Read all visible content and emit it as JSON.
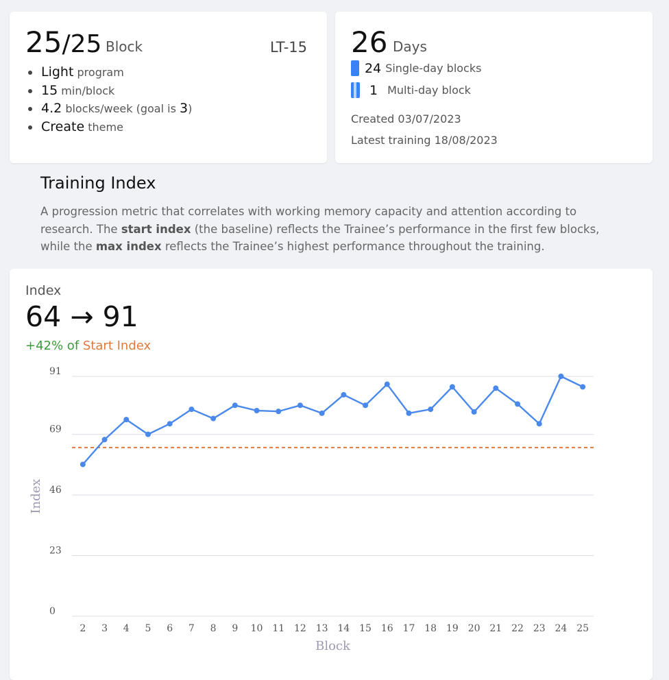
{
  "program": {
    "blocks_done": "25",
    "blocks_total": "25",
    "blocks_unit": "Block",
    "code": "LT-15",
    "stats": [
      {
        "value": "Light",
        "label": "program"
      },
      {
        "value": "15",
        "label": "min/block"
      },
      {
        "value": "4.2",
        "label": "blocks/week (goal is",
        "goal": "3",
        "close": ")"
      },
      {
        "value": "Create",
        "label": "theme"
      }
    ]
  },
  "days": {
    "count": "26",
    "unit": "Days",
    "single_count": "24",
    "single_label": "Single-day blocks",
    "multi_count": "1",
    "multi_label": "Multi-day block",
    "created": "Created 03/07/2023",
    "latest": "Latest training 18/08/2023"
  },
  "section": {
    "title": "Training Index",
    "desc_1": "A progression metric that correlates with working memory capacity and attention according to research. The ",
    "desc_b1": "start index",
    "desc_2": " (the baseline) reflects the Trainee’s performance in the first few blocks, while the ",
    "desc_b2": "max index",
    "desc_3": " reflects the Trainee’s highest performance throughout the training."
  },
  "index": {
    "label": "Index",
    "value": "64 → 91",
    "change_pct": "+42% of",
    "change_ref": "Start Index"
  },
  "colors": {
    "line": "#4a89ea",
    "start_line": "#e07a3c",
    "grid": "#dcdce6"
  },
  "chart_data": {
    "type": "line",
    "xlabel": "Block",
    "ylabel": "Index",
    "x": [
      2,
      3,
      4,
      5,
      6,
      7,
      8,
      9,
      10,
      11,
      12,
      13,
      14,
      15,
      16,
      17,
      18,
      19,
      20,
      21,
      22,
      23,
      24,
      25
    ],
    "series": [
      {
        "values": [
          57.6,
          67,
          74.6,
          69,
          73,
          78.5,
          75,
          80,
          78,
          77.7,
          80,
          77,
          84,
          80,
          88,
          77,
          78.5,
          87,
          77.5,
          86.5,
          80.5,
          73,
          91,
          87
        ]
      }
    ],
    "start_index": 64,
    "yticks": [
      0,
      23,
      46,
      69,
      91
    ],
    "ylim": [
      0,
      91
    ],
    "grid": true
  }
}
